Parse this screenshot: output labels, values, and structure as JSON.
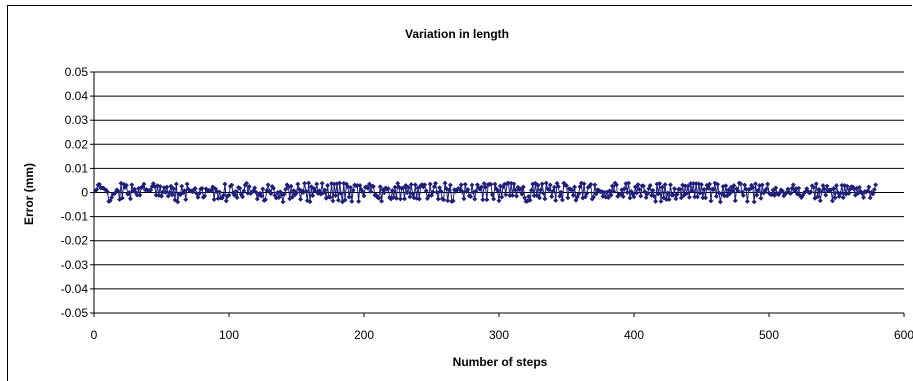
{
  "chart_data": {
    "type": "line",
    "title": "Variation in length",
    "xlabel": "Number of steps",
    "ylabel": "Error (mm)",
    "xlim": [
      0,
      600
    ],
    "ylim": [
      -0.05,
      0.05
    ],
    "x_ticks": [
      0,
      100,
      200,
      300,
      400,
      500,
      600
    ],
    "x_tick_labels": [
      "0",
      "100",
      "200",
      "300",
      "400",
      "500",
      "600"
    ],
    "y_ticks": [
      0.05,
      0.04,
      0.03,
      0.02,
      0.01,
      0,
      -0.01,
      -0.02,
      -0.03,
      -0.04,
      -0.05
    ],
    "y_tick_labels": [
      "0.05",
      "0.04",
      "0.03",
      "0.02",
      "0.01",
      "0",
      "-0.01",
      "-0.02",
      "-0.03",
      "-0.04",
      "-0.05"
    ],
    "grid": true,
    "legend": "none",
    "series_color": "#1f1f7a",
    "marker": "diamond",
    "series": [
      {
        "x_start": 1,
        "x_step": 1,
        "values": [
          0.0006,
          0.0012,
          0.0031,
          0.0034,
          0.0019,
          0.0019,
          0.0018,
          0.0013,
          0.001,
          0.0002,
          -0.0037,
          -0.0034,
          -0.0021,
          -0.0007,
          -0.0005,
          0.0,
          0.0011,
          0.0005,
          -0.0029,
          0.0038,
          -0.0023,
          0.0034,
          0.0021,
          0.003,
          -0.0007,
          0.0,
          -0.0026,
          0.0032,
          0.0007,
          0.0014,
          0.0,
          -0.0011,
          0.0017,
          -0.0011,
          0.0021,
          0.0022,
          0.0035,
          0.0011,
          0.0012,
          0.0008,
          0.0008,
          0.001,
          0.0025,
          0.0037,
          0.0024,
          -0.0011,
          0.0028,
          -0.0012,
          0.0025,
          -0.0015,
          0.0002,
          0.002,
          0.0001,
          0.0023,
          -0.0015,
          0.0,
          0.0026,
          -0.001,
          0.0016,
          -0.0031,
          0.0035,
          -0.0039,
          -0.0006,
          -0.0009,
          0.0026,
          -0.0001,
          0.0008,
          -0.0029,
          0.0035,
          0.0013,
          0.0007,
          0.0006,
          0.0003,
          0.0012,
          0.0017,
          -0.0004,
          -0.002,
          -0.0004,
          0.0014,
          0.0017,
          -0.002,
          -0.0014,
          0.0015,
          0.0006,
          0.0009,
          0.0008,
          0.0009,
          0.0023,
          -0.0029,
          0.0015,
          0.0004,
          -0.0025,
          0.0002,
          -0.0023,
          -0.0023,
          -0.0011,
          0.0035,
          -0.0035,
          -0.0015,
          -0.0011,
          0.0026,
          0.0031,
          -0.0001,
          -0.0011,
          0.0005,
          -0.0021,
          0.0021,
          0.0018,
          -0.0008,
          -0.0018,
          0.0007,
          0.0031,
          0.0038,
          -0.0003,
          0.0025,
          -0.0004,
          0.0002,
          0.0007,
          0.0019,
          0.0001,
          -0.0027,
          -0.001,
          -0.0004,
          -0.0015,
          0.0015,
          -0.0033,
          -0.003,
          0.0008,
          0.0032,
          0.0006,
          -0.0005,
          0.0025,
          0.0018,
          -0.0012,
          -0.0023,
          0.0,
          -0.0021,
          0.0003,
          -0.0011,
          -0.0039,
          -0.0007,
          0.0013,
          0.0032,
          0.0023,
          -0.0026,
          0.0026,
          -0.0019,
          0.0008,
          -0.0009,
          -0.0001,
          0.0035,
          0.0013,
          -0.0028,
          0.0007,
          0.0,
          0.0038,
          0.0005,
          -0.0034,
          0.0039,
          -0.0038,
          0.0024,
          -0.0013,
          0.0016,
          0.0006,
          0.0035,
          -0.0004,
          0.0007,
          -0.0007,
          0.0038,
          -0.0001,
          0.001,
          -0.0024,
          0.0029,
          -0.0018,
          -0.002,
          0.0037,
          -0.0035,
          0.0035,
          -0.0013,
          0.0036,
          -0.0032,
          0.0039,
          -0.0004,
          -0.0039,
          0.0038,
          -0.0031,
          0.0035,
          0.0024,
          -0.0019,
          0.0021,
          -0.0037,
          0.0009,
          0.0031,
          0.0028,
          0.0029,
          -0.0037,
          0.0029,
          0.0012,
          0.0002,
          -0.0014,
          0.0022,
          0.0023,
          0.0017,
          0.0035,
          0.0004,
          0.0026,
          0.0025,
          -0.0011,
          -0.0011,
          -0.002,
          -0.0023,
          0.0024,
          -0.0036,
          0.0012,
          -0.0001,
          0.0019,
          0.0013,
          0.0016,
          -0.0021,
          -0.0027,
          0.0008,
          -0.002,
          0.0022,
          -0.0024,
          0.0038,
          0.0022,
          -0.0027,
          0.0017,
          0.0019,
          -0.0026,
          0.0029,
          -0.0001,
          0.0021,
          -0.0018,
          0.0033,
          -0.0006,
          -0.0022,
          0.0032,
          -0.0024,
          0.0019,
          -0.0027,
          0.0028,
          0.0033,
          0.0023,
          0.0032,
          0.0007,
          -0.0025,
          -0.0014,
          0.0035,
          -0.0012,
          0.0002,
          0.0024,
          0.0038,
          0.0001,
          -0.0027,
          0.002,
          0.0005,
          -0.0026,
          -0.003,
          0.0039,
          0.0016,
          -0.0034,
          0.001,
          0.0031,
          -0.0037,
          -0.0035,
          0.0012,
          0.0004,
          0.0012,
          0.0017,
          0.0011,
          0.0032,
          0.0003,
          -0.0026,
          0.0034,
          0.0004,
          0.0012,
          -0.0014,
          -0.0017,
          0.0031,
          0.0001,
          -0.0027,
          0.0006,
          0.0032,
          0.0018,
          0.0013,
          0.0023,
          -0.003,
          0.0037,
          0.0022,
          -0.003,
          0.0033,
          0.0034,
          0.0034,
          -0.0009,
          -0.0027,
          0.0035,
          0.0016,
          0.0008,
          -0.0034,
          0.0027,
          -0.0019,
          0.0023,
          0.0034,
          -0.0009,
          0.0037,
          0.0039,
          -0.0013,
          0.0038,
          -0.0012,
          0.0036,
          0.001,
          -0.0015,
          0.0022,
          0.0012,
          0.0014,
          -0.0007,
          0.0023,
          -0.0022,
          -0.0037,
          -0.0036,
          -0.0016,
          -0.0032,
          0.0009,
          0.0035,
          -0.0013,
          0.0038,
          -0.0012,
          0.003,
          -0.0022,
          0.0011,
          0.0036,
          -0.0003,
          -0.0026,
          0.0039,
          0.0015,
          0.0011,
          0.0031,
          -0.0017,
          0.0005,
          0.0022,
          -0.0033,
          0.0038,
          0.0025,
          -0.0015,
          0.0001,
          -0.0031,
          0.0039,
          0.003,
          0.0029,
          -0.0022,
          0.0016,
          0.0013,
          0.0011,
          -0.0012,
          0.0023,
          -0.0032,
          -0.0019,
          -0.0006,
          0.0024,
          0.0039,
          -0.0023,
          0.0036,
          -0.0018,
          -0.0005,
          0.0021,
          0.0027,
          0.0034,
          -0.0027,
          -0.0019,
          0.0032,
          -0.0006,
          0.0011,
          0.0009,
          0.0003,
          0.0004,
          -0.0016,
          0.0001,
          -0.0019,
          0.0002,
          -0.0021,
          0.0007,
          -0.0011,
          0.0027,
          0.0005,
          0.0039,
          0.0032,
          -0.0016,
          -0.0009,
          -0.0007,
          0.0011,
          -0.0017,
          0.0016,
          0.0037,
          0.0,
          0.0039,
          -0.0023,
          0.0004,
          -0.0006,
          -0.0018,
          0.0023,
          -0.0002,
          0.0033,
          0.0013,
          -0.0015,
          0.0028,
          0.0027,
          0.0004,
          -0.0021,
          -0.0005,
          0.0016,
          0.0029,
          -0.0012,
          0.0009,
          -0.0016,
          -0.0037,
          0.0035,
          -0.0006,
          0.0037,
          -0.0037,
          0.0022,
          -0.0022,
          0.0033,
          -0.0029,
          -0.0002,
          -0.0029,
          0.0032,
          -0.0011,
          -0.0011,
          0.0016,
          -0.0026,
          -0.0008,
          0.0013,
          0.0014,
          -0.0022,
          0.0031,
          -0.0012,
          0.0027,
          -0.0004,
          0.0027,
          -0.002,
          0.0037,
          0.0007,
          0.0037,
          -0.0018,
          0.0037,
          -0.0018,
          0.0036,
          -0.0003,
          0.0033,
          -0.0022,
          0.0013,
          -0.0022,
          0.003,
          0.0017,
          0.0035,
          -0.0035,
          0.0014,
          0.0012,
          0.0039,
          -0.0016,
          0.0034,
          -0.0002,
          -0.0039,
          -0.0005,
          0.0025,
          -0.0014,
          0.0028,
          -0.0014,
          0.0011,
          -0.0005,
          0.0022,
          0.0006,
          0.0029,
          -0.0034,
          0.0016,
          0.0008,
          0.0039,
          0.0036,
          0.0002,
          -0.0012,
          0.0031,
          0.0014,
          -0.0037,
          0.0012,
          0.0014,
          0.003,
          0.0021,
          -0.0039,
          0.0036,
          -0.0011,
          0.0009,
          0.0029,
          -0.0024,
          0.0031,
          -0.0002,
          0.0006,
          0.0014,
          0.0035,
          -0.0002,
          -0.0008,
          -0.0008,
          0.001,
          -0.0012,
          0.0019,
          -0.0004,
          -0.0009,
          -0.0001,
          0.0011,
          0.0006,
          -0.0014,
          -0.0006,
          -0.0001,
          0.0014,
          0.0,
          -0.0004,
          0.0017,
          0.0032,
          0.0007,
          0.0016,
          -0.0006,
          0.0018,
          -0.0012,
          -0.0021,
          -0.0012,
          -0.0001,
          0.0003,
          0.0016,
          0.0004,
          -0.0002,
          0.0002,
          0.0028,
          0.0022,
          -0.0024,
          0.0036,
          -0.0018,
          0.0013,
          -0.0034,
          0.0003,
          0.0029,
          0.0014,
          -0.0011,
          0.0027,
          0.0007,
          0.0011,
          0.0011,
          -0.0035,
          0.0017,
          -0.0022,
          0.0029,
          -0.0001,
          -0.0017,
          -0.0003,
          0.003,
          -0.0021,
          0.0029,
          -0.0007,
          0.0026,
          -0.0004,
          0.0013,
          0.0024,
          0.0023,
          0.0014,
          -0.0011,
          0.0018,
          -0.0003,
          0.0021,
          0.0004,
          -0.0004,
          -0.0021,
          0.0004,
          0.0002,
          0.0006,
          0.0023,
          -0.0022,
          0.0001,
          -0.0006,
          0.0012,
          0.0032
        ]
      }
    ]
  }
}
